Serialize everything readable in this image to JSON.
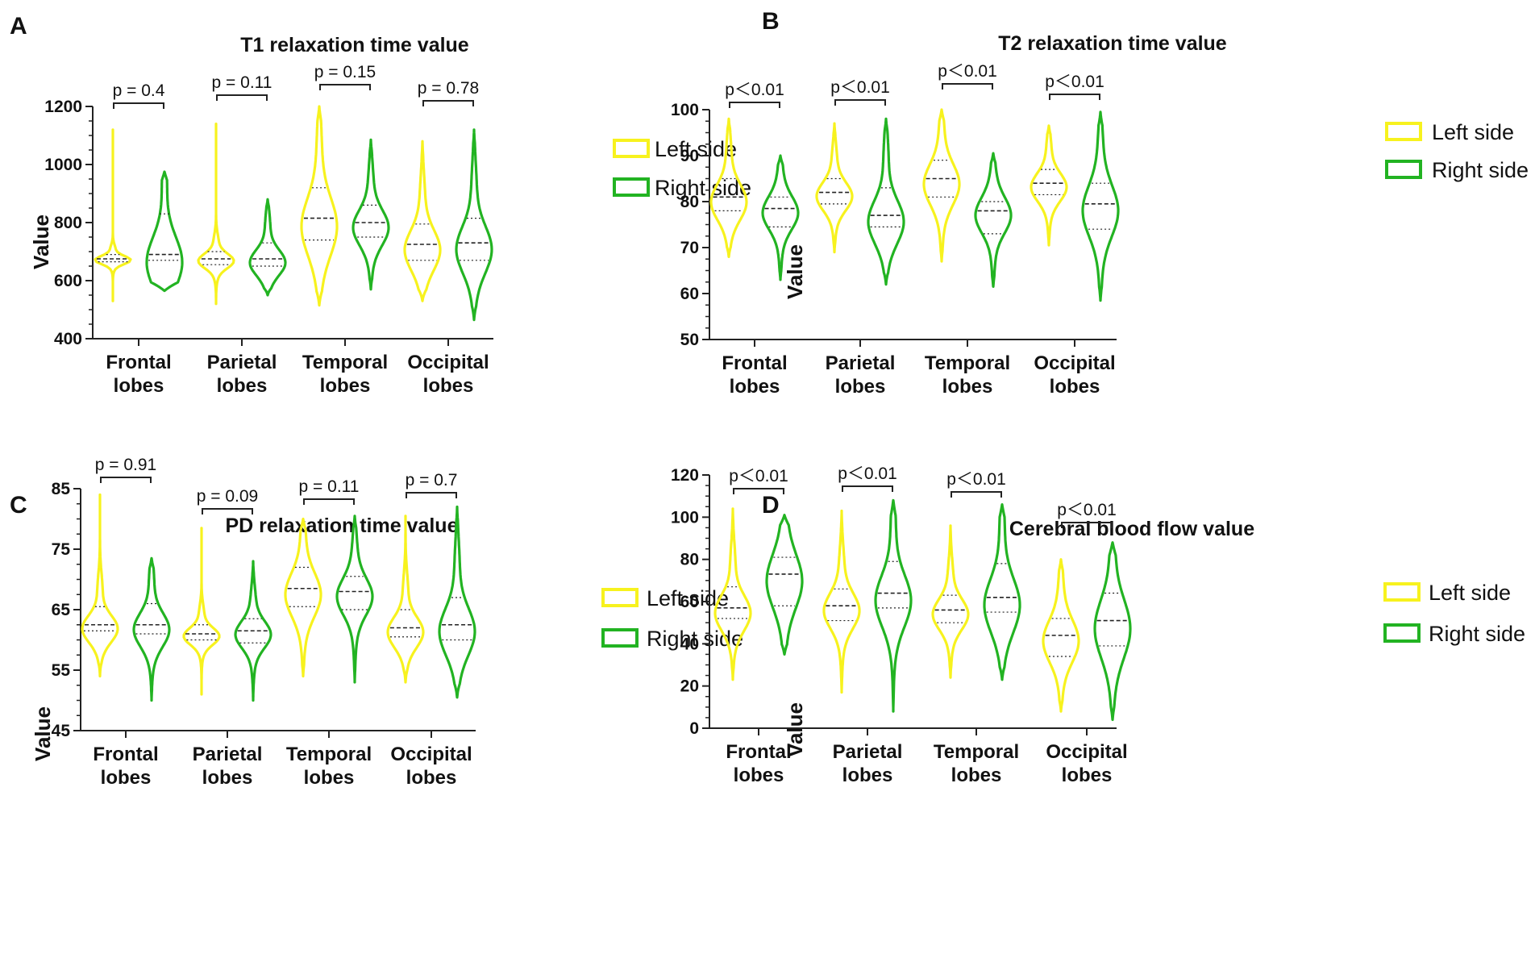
{
  "legend": {
    "left": {
      "label": "Left side",
      "color": "#F7F21E"
    },
    "right": {
      "label": "Right side",
      "color": "#22B322"
    }
  },
  "y_axis_label": "Value",
  "categories": [
    "Frontal lobes",
    "Parietal lobes",
    "Temporal lobes",
    "Occipital lobes"
  ],
  "chart_data": [
    {
      "panel": "A",
      "type": "violin",
      "title": "T1 relaxation time value",
      "ylabel": "Value",
      "ylim": [
        400,
        1200
      ],
      "yticks": [
        400,
        600,
        800,
        1000,
        1200
      ],
      "categories": [
        "Frontal lobes",
        "Parietal lobes",
        "Temporal lobes",
        "Occipital lobes"
      ],
      "pvalues": [
        "p = 0.4",
        "p = 0.11",
        "p = 0.15",
        "p = 0.78"
      ],
      "series": [
        {
          "name": "Left side",
          "min": [
            530,
            520,
            515,
            530
          ],
          "max": [
            1120,
            1140,
            1200,
            1080
          ],
          "q1": [
            665,
            655,
            740,
            670
          ],
          "median": [
            675,
            675,
            815,
            725
          ],
          "q3": [
            690,
            700,
            920,
            795
          ]
        },
        {
          "name": "Right side",
          "min": [
            565,
            550,
            570,
            465
          ],
          "max": [
            975,
            880,
            1085,
            1120
          ],
          "q1": [
            670,
            650,
            750,
            670
          ],
          "median": [
            690,
            675,
            800,
            730
          ],
          "q3": [
            830,
            730,
            860,
            815
          ]
        }
      ]
    },
    {
      "panel": "B",
      "type": "violin",
      "title": "T2 relaxation time value",
      "ylabel": "Value",
      "ylim": [
        50,
        100
      ],
      "yticks": [
        50,
        60,
        70,
        80,
        90,
        100
      ],
      "categories": [
        "Frontal lobes",
        "Parietal lobes",
        "Temporal lobes",
        "Occipital lobes"
      ],
      "pvalues": [
        "p＜0.01",
        "p＜0.01",
        "p＜0.01",
        "p＜0.01"
      ],
      "series": [
        {
          "name": "Left side",
          "min": [
            68,
            69,
            67,
            70.5
          ],
          "max": [
            98,
            97,
            100,
            96.5
          ],
          "q1": [
            78,
            79.5,
            81,
            81.5
          ],
          "median": [
            81,
            82,
            85,
            84
          ],
          "q3": [
            85,
            85,
            89,
            87
          ]
        },
        {
          "name": "Right side",
          "min": [
            63,
            62,
            61.5,
            58.5
          ],
          "max": [
            90,
            98,
            90.5,
            99.5
          ],
          "q1": [
            74.5,
            74.5,
            73,
            74
          ],
          "median": [
            78.5,
            77,
            78,
            79.5
          ],
          "q3": [
            81,
            83,
            80,
            84
          ]
        }
      ]
    },
    {
      "panel": "C",
      "type": "violin",
      "title": "PD relaxation time value",
      "ylabel": "Value",
      "ylim": [
        45,
        85
      ],
      "yticks": [
        45,
        55,
        65,
        75,
        85
      ],
      "categories": [
        "Frontal lobes",
        "Parietal lobes",
        "Temporal lobes",
        "Occipital lobes"
      ],
      "pvalues": [
        "p = 0.91",
        "p = 0.09",
        "p = 0.11",
        "p = 0.7"
      ],
      "series": [
        {
          "name": "Left side",
          "min": [
            54,
            51,
            54,
            53
          ],
          "max": [
            84,
            78.5,
            80,
            80.5
          ],
          "q1": [
            61.5,
            60,
            65.5,
            60.5
          ],
          "median": [
            62.5,
            61,
            68.5,
            62
          ],
          "q3": [
            65.5,
            62.5,
            72,
            65
          ]
        },
        {
          "name": "Right side",
          "min": [
            50,
            50,
            53,
            50.5
          ],
          "max": [
            73.5,
            73,
            80.5,
            82
          ],
          "q1": [
            61,
            59.5,
            65,
            60
          ],
          "median": [
            62.5,
            61.5,
            68,
            62.5
          ],
          "q3": [
            66,
            63.5,
            70.5,
            67
          ]
        }
      ]
    },
    {
      "panel": "D",
      "type": "violin",
      "title": "Cerebral blood flow value",
      "ylabel": "Value",
      "ylim": [
        0,
        120
      ],
      "yticks": [
        0,
        20,
        40,
        60,
        80,
        100,
        120
      ],
      "categories": [
        "Frontal lobes",
        "Parietal lobes",
        "Temporal lobes",
        "Occipital lobes"
      ],
      "pvalues": [
        "p＜0.01",
        "p＜0.01",
        "p＜0.01",
        "p＜0.01"
      ],
      "series": [
        {
          "name": "Left side",
          "min": [
            23,
            17,
            24,
            8
          ],
          "max": [
            104,
            103,
            96,
            80
          ],
          "q1": [
            52,
            51,
            50,
            34
          ],
          "median": [
            57,
            58,
            56,
            44
          ],
          "q3": [
            67,
            66,
            63,
            52
          ]
        },
        {
          "name": "Right side",
          "min": [
            35,
            8,
            23,
            4
          ],
          "max": [
            101,
            108,
            106,
            88
          ],
          "q1": [
            58,
            57,
            55,
            39
          ],
          "median": [
            73,
            64,
            62,
            51
          ],
          "q3": [
            81,
            79,
            78,
            64
          ]
        }
      ]
    }
  ]
}
